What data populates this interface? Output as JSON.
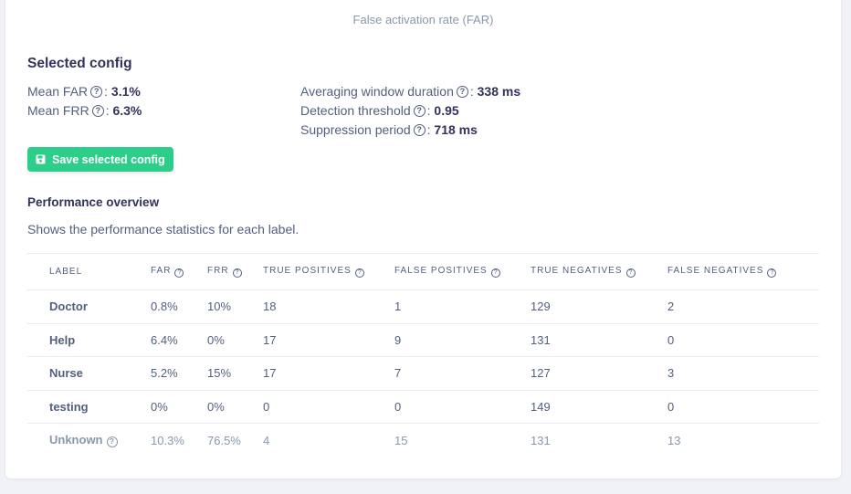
{
  "chart_caption": "False activation rate (FAR)",
  "selected_config": {
    "title": "Selected config",
    "mean_far_label": "Mean FAR",
    "mean_far_value": "3.1%",
    "mean_frr_label": "Mean FRR",
    "mean_frr_value": "6.3%",
    "window_label": "Averaging window duration",
    "window_value": "338 ms",
    "threshold_label": "Detection threshold",
    "threshold_value": "0.95",
    "suppression_label": "Suppression period",
    "suppression_value": "718 ms",
    "save_label": "Save selected config"
  },
  "performance": {
    "title": "Performance overview",
    "description": "Shows the performance statistics for each label.",
    "columns": [
      "LABEL",
      "FAR",
      "FRR",
      "TRUE POSITIVES",
      "FALSE POSITIVES",
      "TRUE NEGATIVES",
      "FALSE NEGATIVES"
    ],
    "rows": [
      [
        "Doctor",
        "0.8%",
        "10%",
        "18",
        "1",
        "129",
        "2"
      ],
      [
        "Help",
        "6.4%",
        "0%",
        "17",
        "9",
        "131",
        "0"
      ],
      [
        "Nurse",
        "5.2%",
        "15%",
        "17",
        "7",
        "127",
        "3"
      ],
      [
        "testing",
        "0%",
        "0%",
        "0",
        "0",
        "149",
        "0"
      ],
      [
        "Unknown",
        "10.3%",
        "76.5%",
        "4",
        "15",
        "131",
        "13"
      ]
    ]
  },
  "icons": {
    "help": "question-circle-icon",
    "save": "floppy-disk-icon"
  },
  "colors": {
    "accent_green": "#2dce89",
    "text_dark": "#32325d",
    "text_muted": "#8898aa"
  }
}
